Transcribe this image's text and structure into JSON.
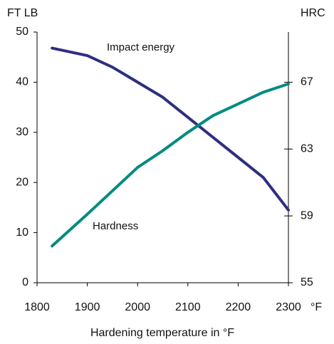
{
  "chart_data": {
    "type": "line",
    "ylabel": "FT LB",
    "y2label": "HRC",
    "xlabel": "Hardening temperature  in °F",
    "x_unit": "°F",
    "x": [
      1830,
      1900,
      1950,
      2000,
      2050,
      2100,
      2150,
      2200,
      2250,
      2300
    ],
    "series": [
      {
        "name": "Impact energy",
        "color": "#2e2f7f",
        "values": [
          46.8,
          45.3,
          43,
          40,
          37,
          33,
          29,
          25,
          21,
          14.5
        ]
      },
      {
        "name": "Hardness",
        "color": "#008b80",
        "axis": "y2",
        "values": [
          57.2,
          59.1,
          60.5,
          61.9,
          62.9,
          64,
          65,
          65.7,
          66.4,
          66.9
        ]
      }
    ],
    "xlim": [
      1800,
      2300
    ],
    "xticks": [
      1800,
      1900,
      2000,
      2100,
      2200,
      2300
    ],
    "ylim": [
      0,
      50
    ],
    "yticks": [
      0,
      10,
      20,
      30,
      40,
      50
    ],
    "y2lim": [
      55,
      70
    ],
    "y2ticks": [
      55,
      59,
      63,
      67
    ],
    "grid": false
  }
}
